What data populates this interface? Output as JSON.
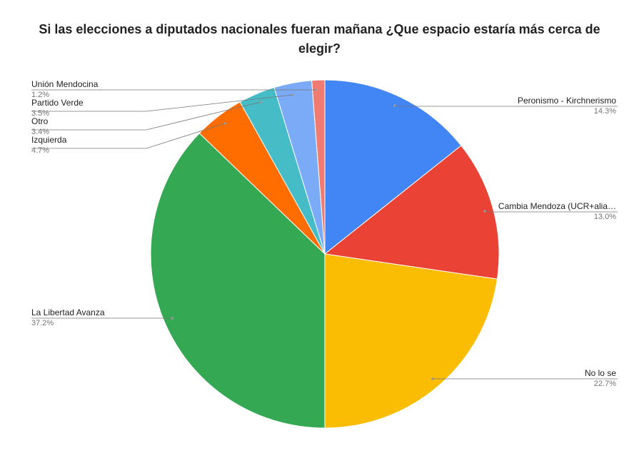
{
  "chart_data": {
    "type": "pie",
    "title_lines": [
      "Si las elecciones a diputados nacionales fueran mañana ¿Que espacio estaría más cerca de",
      "elegir?"
    ],
    "slices": [
      {
        "label": "Peronismo - Kirchnerismo",
        "value": 14.3,
        "pct_label": "14.3%",
        "color": "#4285F4"
      },
      {
        "label": "Cambia Mendoza (UCR+alia…",
        "value": 13.0,
        "pct_label": "13.0%",
        "color": "#EA4335"
      },
      {
        "label": "No lo se",
        "value": 22.7,
        "pct_label": "22.7%",
        "color": "#FBBC04"
      },
      {
        "label": "La Libertad Avanza",
        "value": 37.2,
        "pct_label": "37.2%",
        "color": "#34A853"
      },
      {
        "label": "Izquierda",
        "value": 4.7,
        "pct_label": "4.7%",
        "color": "#FF6D01"
      },
      {
        "label": "Otro",
        "value": 3.4,
        "pct_label": "3.4%",
        "color": "#46BDC6"
      },
      {
        "label": "Partido Verde",
        "value": 3.5,
        "pct_label": "3.5%",
        "color": "#7BAAF7"
      },
      {
        "label": "Unión Mendocina",
        "value": 1.2,
        "pct_label": "1.2%",
        "color": "#F07B72"
      }
    ],
    "legend": "none"
  }
}
